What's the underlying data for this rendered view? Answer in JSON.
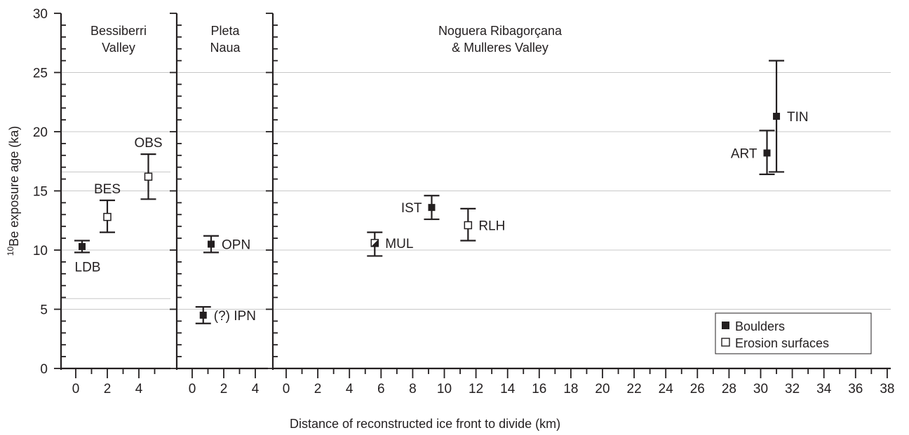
{
  "chart_data": {
    "type": "scatter",
    "y_axis": {
      "label_sup": "10",
      "label_main": "Be exposure age (ka)",
      "range": [
        0,
        30
      ],
      "ticks": [
        "0",
        "5",
        "10",
        "15",
        "20",
        "25",
        "30"
      ],
      "gridlines": [
        5,
        10,
        15,
        20,
        25
      ]
    },
    "x_axis_label": "Distance of reconstructed ice front to divide (km)",
    "panels": [
      {
        "title_lines": [
          "Bessiberri",
          "Valley"
        ],
        "x_range": [
          0,
          6
        ],
        "x_ticks": [
          "0",
          "2",
          "4"
        ],
        "points": [
          {
            "label": "LDB",
            "x": 0.4,
            "y": 10.3,
            "err_low": 9.8,
            "err_high": 10.8,
            "type": "boulder",
            "label_pos": "below"
          },
          {
            "label": "BES",
            "x": 2.0,
            "y": 12.8,
            "err_low": 11.5,
            "err_high": 14.2,
            "type": "erosion",
            "label_pos": "above"
          },
          {
            "label": "OBS",
            "x": 4.6,
            "y": 16.2,
            "err_low": 14.3,
            "err_high": 18.1,
            "type": "erosion",
            "label_pos": "above"
          }
        ]
      },
      {
        "title_lines": [
          "Pleta",
          "Naua"
        ],
        "x_range": [
          -0.5,
          4.5
        ],
        "x_ticks": [
          "0",
          "2",
          "4"
        ],
        "points": [
          {
            "label": "OPN",
            "x": 1.2,
            "y": 10.5,
            "err_low": 9.8,
            "err_high": 11.2,
            "type": "boulder",
            "label_pos": "right"
          },
          {
            "label": "(?) IPN",
            "x": 0.7,
            "y": 4.5,
            "err_low": 3.8,
            "err_high": 5.2,
            "type": "boulder",
            "label_pos": "right"
          }
        ]
      },
      {
        "title_lines": [
          "Noguera Ribagorçana",
          "& Mulleres Valley"
        ],
        "x_range": [
          0,
          38
        ],
        "x_ticks": [
          "0",
          "2",
          "4",
          "6",
          "8",
          "10",
          "12",
          "14",
          "16",
          "18",
          "20",
          "22",
          "24",
          "26",
          "28",
          "30",
          "32",
          "34",
          "36",
          "38"
        ],
        "points": [
          {
            "label": "MUL",
            "x": 5.6,
            "y": 10.6,
            "err_low": 9.5,
            "err_high": 11.5,
            "type": "mixed",
            "label_pos": "right"
          },
          {
            "label": "IST",
            "x": 9.2,
            "y": 13.6,
            "err_low": 12.6,
            "err_high": 14.6,
            "type": "boulder",
            "label_pos": "left"
          },
          {
            "label": "RLH",
            "x": 11.5,
            "y": 12.1,
            "err_low": 10.8,
            "err_high": 13.5,
            "type": "erosion",
            "label_pos": "right"
          },
          {
            "label": "ART",
            "x": 30.4,
            "y": 18.2,
            "err_low": 16.4,
            "err_high": 20.1,
            "type": "boulder",
            "label_pos": "left"
          },
          {
            "label": "TIN",
            "x": 31.0,
            "y": 21.3,
            "err_low": 16.6,
            "err_high": 26.0,
            "type": "boulder",
            "label_pos": "right"
          }
        ]
      }
    ],
    "legend": {
      "position": "bottom-right",
      "items": [
        {
          "label": "Boulders",
          "type": "boulder"
        },
        {
          "label": "Erosion surfaces",
          "type": "erosion"
        }
      ]
    },
    "colors": {
      "ink": "#231f20",
      "grid": "#c8c8c8",
      "background": "#ffffff"
    }
  }
}
